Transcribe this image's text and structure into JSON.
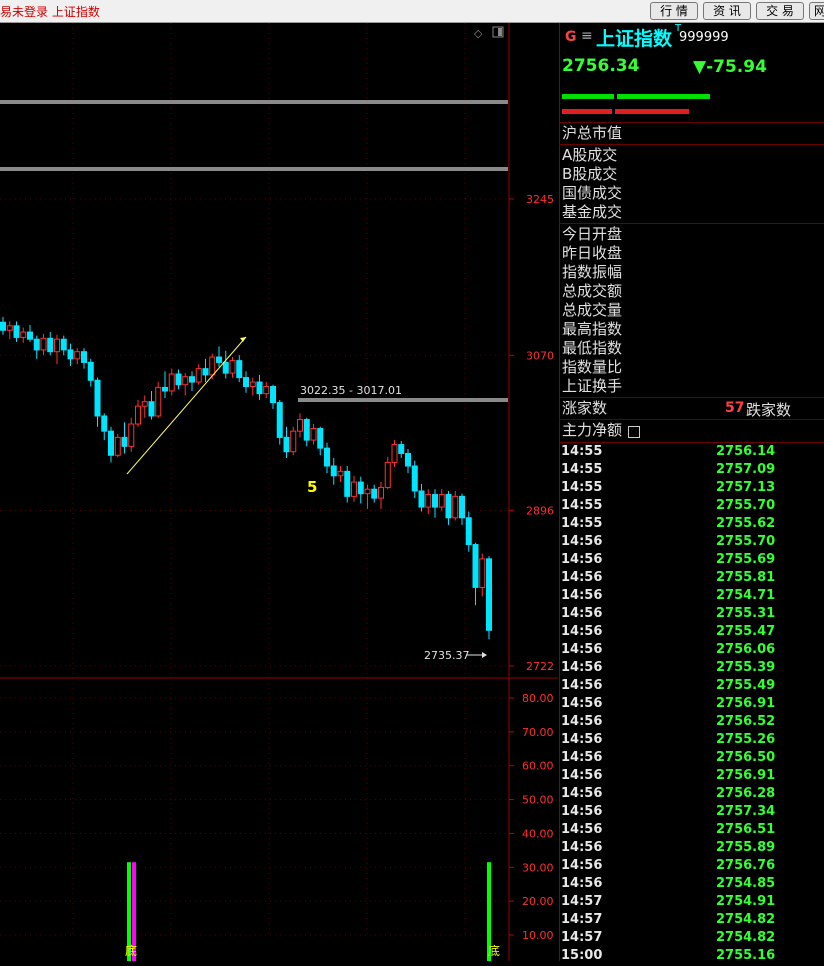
{
  "topbar": {
    "status": "易未登录  上证指数",
    "buttons": [
      "行 情",
      "资 讯",
      "交 易",
      "网"
    ]
  },
  "quote": {
    "market_mark": "G",
    "menu_glyph": "≡",
    "name": "上证指数",
    "sup": "T",
    "code": "999999",
    "price": "2756.34",
    "change": "▼-75.94"
  },
  "labels": {
    "market_value": "沪总市值",
    "turnover": [
      "A股成交",
      "B股成交",
      "国债成交",
      "基金成交"
    ],
    "stats": [
      "今日开盘",
      "昨日收盘",
      "指数振幅",
      "总成交额",
      "总成交量",
      "最高指数",
      "最低指数",
      "指数量比",
      "上证换手"
    ],
    "advancers": "涨家数",
    "advancers_count": "57",
    "decliners": "跌家数",
    "main_net": "主力净额"
  },
  "ticks": [
    {
      "t": "14:55",
      "p": "2756.14"
    },
    {
      "t": "14:55",
      "p": "2757.09"
    },
    {
      "t": "14:55",
      "p": "2757.13"
    },
    {
      "t": "14:55",
      "p": "2755.70"
    },
    {
      "t": "14:55",
      "p": "2755.62"
    },
    {
      "t": "14:56",
      "p": "2755.70"
    },
    {
      "t": "14:56",
      "p": "2755.69"
    },
    {
      "t": "14:56",
      "p": "2755.81"
    },
    {
      "t": "14:56",
      "p": "2754.71"
    },
    {
      "t": "14:56",
      "p": "2755.31"
    },
    {
      "t": "14:56",
      "p": "2755.47"
    },
    {
      "t": "14:56",
      "p": "2756.06"
    },
    {
      "t": "14:56",
      "p": "2755.39"
    },
    {
      "t": "14:56",
      "p": "2755.49"
    },
    {
      "t": "14:56",
      "p": "2756.91"
    },
    {
      "t": "14:56",
      "p": "2756.52"
    },
    {
      "t": "14:56",
      "p": "2755.26"
    },
    {
      "t": "14:56",
      "p": "2756.50"
    },
    {
      "t": "14:56",
      "p": "2756.91"
    },
    {
      "t": "14:56",
      "p": "2756.28"
    },
    {
      "t": "14:56",
      "p": "2757.34"
    },
    {
      "t": "14:56",
      "p": "2756.51"
    },
    {
      "t": "14:56",
      "p": "2755.89"
    },
    {
      "t": "14:56",
      "p": "2756.76"
    },
    {
      "t": "14:56",
      "p": "2754.85"
    },
    {
      "t": "14:57",
      "p": "2754.91"
    },
    {
      "t": "14:57",
      "p": "2754.82"
    },
    {
      "t": "14:57",
      "p": "2754.82"
    },
    {
      "t": "15:00",
      "p": "2755.16"
    }
  ],
  "chart_data": [
    {
      "type": "candlestick",
      "y_ticks": [
        "3245",
        "3070",
        "2896",
        "2722"
      ],
      "ylim": [
        2700,
        3300
      ],
      "candles": [
        [
          3107,
          3113,
          3093,
          3098
        ],
        [
          3098,
          3108,
          3088,
          3103
        ],
        [
          3103,
          3108,
          3085,
          3090
        ],
        [
          3090,
          3101,
          3084,
          3096
        ],
        [
          3096,
          3104,
          3085,
          3088
        ],
        [
          3088,
          3092,
          3066,
          3076
        ],
        [
          3076,
          3094,
          3070,
          3089
        ],
        [
          3089,
          3096,
          3070,
          3074
        ],
        [
          3074,
          3093,
          3060,
          3088
        ],
        [
          3088,
          3092,
          3070,
          3076
        ],
        [
          3076,
          3083,
          3058,
          3066
        ],
        [
          3066,
          3078,
          3060,
          3074
        ],
        [
          3074,
          3078,
          3055,
          3062
        ],
        [
          3062,
          3066,
          3035,
          3042
        ],
        [
          3042,
          3045,
          2990,
          3002
        ],
        [
          3002,
          3005,
          2975,
          2985
        ],
        [
          2985,
          2990,
          2950,
          2958
        ],
        [
          2958,
          2982,
          2956,
          2978
        ],
        [
          2978,
          2995,
          2960,
          2968
        ],
        [
          2968,
          3000,
          2962,
          2993
        ],
        [
          2993,
          3020,
          2990,
          3013
        ],
        [
          3013,
          3025,
          3000,
          3018
        ],
        [
          3018,
          3030,
          2998,
          3002
        ],
        [
          3002,
          3040,
          3000,
          3034
        ],
        [
          3034,
          3052,
          3022,
          3030
        ],
        [
          3030,
          3055,
          3025,
          3049
        ],
        [
          3049,
          3054,
          3032,
          3037
        ],
        [
          3037,
          3050,
          3025,
          3046
        ],
        [
          3046,
          3052,
          3030,
          3040
        ],
        [
          3040,
          3060,
          3037,
          3055
        ],
        [
          3055,
          3066,
          3040,
          3048
        ],
        [
          3048,
          3072,
          3043,
          3068
        ],
        [
          3068,
          3080,
          3057,
          3062
        ],
        [
          3062,
          3075,
          3044,
          3050
        ],
        [
          3050,
          3068,
          3045,
          3064
        ],
        [
          3064,
          3070,
          3040,
          3045
        ],
        [
          3045,
          3052,
          3028,
          3035
        ],
        [
          3035,
          3045,
          3025,
          3040
        ],
        [
          3040,
          3048,
          3020,
          3027
        ],
        [
          3027,
          3040,
          3022,
          3035
        ],
        [
          3035,
          3037,
          3010,
          3017
        ],
        [
          3017,
          3020,
          2970,
          2978
        ],
        [
          2978,
          2990,
          2955,
          2962
        ],
        [
          2962,
          2990,
          2958,
          2985
        ],
        [
          2985,
          3005,
          2978,
          2998
        ],
        [
          2998,
          3000,
          2968,
          2975
        ],
        [
          2975,
          2993,
          2970,
          2988
        ],
        [
          2988,
          2990,
          2958,
          2966
        ],
        [
          2966,
          2972,
          2938,
          2946
        ],
        [
          2946,
          2955,
          2925,
          2935
        ],
        [
          2935,
          2946,
          2928,
          2940
        ],
        [
          2940,
          2946,
          2905,
          2912
        ],
        [
          2912,
          2935,
          2906,
          2928
        ],
        [
          2928,
          2934,
          2904,
          2915
        ],
        [
          2915,
          2925,
          2898,
          2920
        ],
        [
          2920,
          2925,
          2905,
          2910
        ],
        [
          2910,
          2928,
          2898,
          2922
        ],
        [
          2922,
          2956,
          2920,
          2950
        ],
        [
          2950,
          2975,
          2945,
          2970
        ],
        [
          2970,
          2974,
          2955,
          2960
        ],
        [
          2960,
          2965,
          2938,
          2946
        ],
        [
          2946,
          2952,
          2910,
          2918
        ],
        [
          2918,
          2926,
          2895,
          2900
        ],
        [
          2900,
          2920,
          2892,
          2914
        ],
        [
          2914,
          2920,
          2888,
          2900
        ],
        [
          2900,
          2920,
          2896,
          2914
        ],
        [
          2914,
          2918,
          2880,
          2888
        ],
        [
          2888,
          2918,
          2885,
          2912
        ],
        [
          2912,
          2915,
          2880,
          2888
        ],
        [
          2888,
          2895,
          2850,
          2858
        ],
        [
          2858,
          2860,
          2790,
          2810
        ],
        [
          2810,
          2848,
          2800,
          2842
        ],
        [
          2842,
          2845,
          2752,
          2762
        ]
      ],
      "annotations": {
        "range": "3022.35 - 3017.01",
        "wave": "5",
        "low": "2735.37"
      }
    },
    {
      "type": "bar",
      "y_ticks": [
        "80.00",
        "70.00",
        "60.00",
        "50.00",
        "40.00",
        "30.00",
        "20.00",
        "10.00"
      ],
      "ylim": [
        0,
        85
      ],
      "bars": [
        {
          "x": 129,
          "value": 30,
          "color": "#00ff00"
        },
        {
          "x": 134,
          "value": 30,
          "color": "#ff00ff"
        },
        {
          "x": 489,
          "value": 30,
          "color": "#00ff00"
        }
      ],
      "labels": [
        "底",
        "底"
      ]
    }
  ]
}
